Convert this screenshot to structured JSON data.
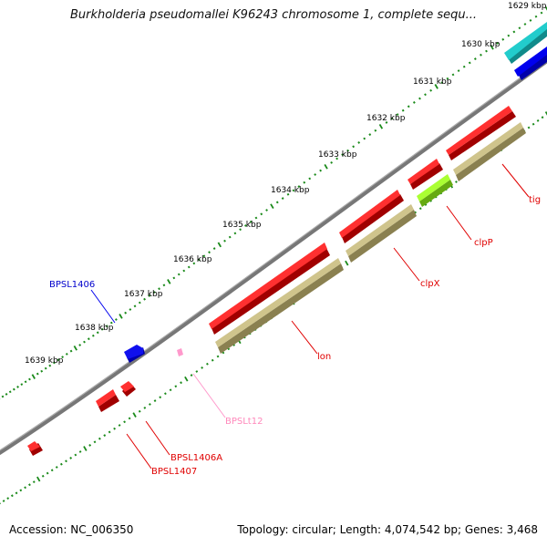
{
  "title": "Burkholderia pseudomallei K96243 chromosome 1, complete sequ...",
  "ruler": {
    "labels": [
      "1629 kbp",
      "1630 kbp",
      "1631 kbp",
      "1632 kbp",
      "1633 kbp",
      "1634 kbp",
      "1635 kbp",
      "1636 kbp",
      "1637 kbp",
      "1638 kbp",
      "1639 kbp"
    ]
  },
  "genes": [
    {
      "label": "tig",
      "color": "#e00000"
    },
    {
      "label": "clpP",
      "color": "#e00000"
    },
    {
      "label": "clpX",
      "color": "#e00000"
    },
    {
      "label": "lon",
      "color": "#e00000"
    },
    {
      "label": "BPSL1406",
      "color": "#0000cc"
    },
    {
      "label": "BPSLt12",
      "color": "#ff88bb"
    },
    {
      "label": "BPSL1406A",
      "color": "#e00000"
    },
    {
      "label": "BPSL1407",
      "color": "#e00000"
    }
  ],
  "colors": {
    "cds": "#ee0000",
    "cds_dark": "#aa0000",
    "blue": "#0000ee",
    "cyan": "#22cccc",
    "olive": "#bdb27a",
    "lime": "#99ee22",
    "tick": "#1a8a1a",
    "backbone": "#777777"
  },
  "footer": {
    "accession": "Accession: NC_006350",
    "stats": "Topology: circular; Length: 4,074,542 bp; Genes: 3,468"
  }
}
